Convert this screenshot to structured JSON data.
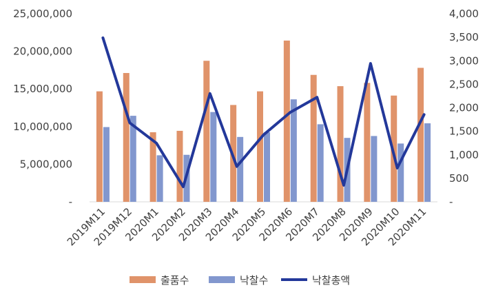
{
  "chart_data": {
    "type": "bar",
    "categories": [
      "2019M11",
      "2019M12",
      "2020M1",
      "2020M2",
      "2020M3",
      "2020M4",
      "2020M5",
      "2020M6",
      "2020M7",
      "2020M8",
      "2020M9",
      "2020M10",
      "2020M11"
    ],
    "series": [
      {
        "name": "출품수",
        "axis": "right",
        "type": "bar",
        "color": "#e0936a",
        "values": [
          2350,
          2740,
          1480,
          1510,
          3000,
          2060,
          2350,
          3430,
          2700,
          2460,
          2530,
          2260,
          2850
        ]
      },
      {
        "name": "낙찰수",
        "axis": "right",
        "type": "bar",
        "color": "#8297ce",
        "values": [
          1590,
          1830,
          990,
          1000,
          1910,
          1380,
          1480,
          2180,
          1650,
          1360,
          1400,
          1240,
          1670
        ]
      },
      {
        "name": "낙찰총액",
        "axis": "left",
        "type": "line",
        "color": "#23389a",
        "values": [
          21800000,
          10500000,
          7800000,
          2000000,
          14400000,
          4700000,
          8900000,
          11900000,
          13900000,
          2200000,
          18400000,
          4500000,
          11600000
        ]
      }
    ],
    "y_left": {
      "min": 0,
      "max": 25000000,
      "ticks": [
        "-",
        "5,000,000",
        "10,000,000",
        "15,000,000",
        "20,000,000",
        "25,000,000"
      ]
    },
    "y_right": {
      "min": 0,
      "max": 4000,
      "ticks": [
        "-",
        "500",
        "1,000",
        "1,500",
        "2,000",
        "2,500",
        "3,000",
        "3,500",
        "4,000"
      ]
    },
    "grid": false,
    "legend_position": "bottom"
  }
}
